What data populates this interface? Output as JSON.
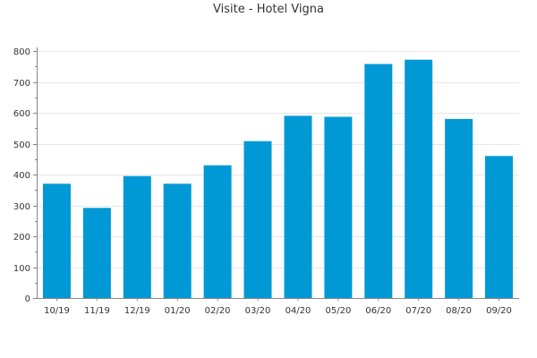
{
  "chart_data": {
    "type": "bar",
    "title": "Visite - Hotel Vigna",
    "xlabel": "",
    "ylabel": "",
    "categories": [
      "10/19",
      "11/19",
      "12/19",
      "01/20",
      "02/20",
      "03/20",
      "04/20",
      "05/20",
      "06/20",
      "07/20",
      "08/20",
      "09/20"
    ],
    "values": [
      370,
      292,
      395,
      370,
      430,
      508,
      590,
      587,
      758,
      772,
      580,
      460
    ],
    "ylim": [
      0,
      800
    ],
    "yticks": [
      0,
      100,
      200,
      300,
      400,
      500,
      600,
      700,
      800
    ],
    "grid": true,
    "legend": "none",
    "bar_color": "#0099d6",
    "grid_color": "#e6e6e6",
    "axis_color": "#888888"
  }
}
